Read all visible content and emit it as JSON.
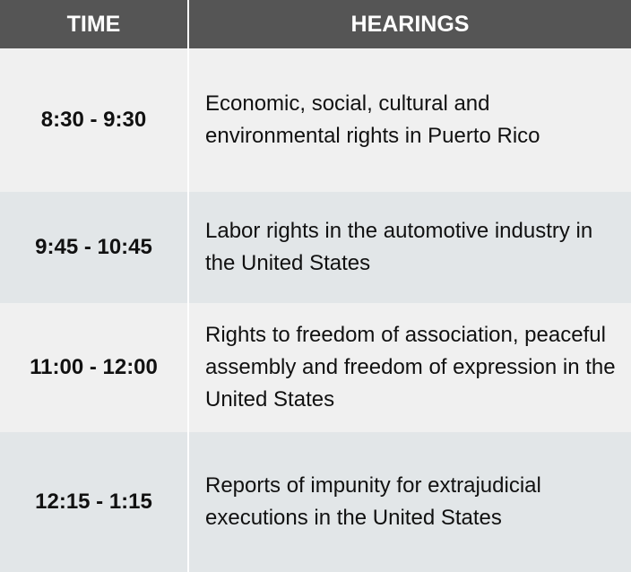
{
  "table": {
    "header": {
      "time": "TIME",
      "hearings": "HEARINGS"
    },
    "rows": [
      {
        "time": "8:30 - 9:30",
        "hearing": "Economic, social, cultural and environmental rights in Puerto Rico"
      },
      {
        "time": "9:45 - 10:45",
        "hearing": "Labor rights in the automotive industry in the United States"
      },
      {
        "time": "11:00 - 12:00",
        "hearing": "Rights to freedom of association, peaceful assembly and freedom of expression in the United States"
      },
      {
        "time": "12:15 - 1:15",
        "hearing": "Reports of impunity for extrajudicial executions in the United States"
      }
    ]
  },
  "colors": {
    "header_bg": "#555555",
    "header_text": "#ffffff",
    "row_light": "#f0f0f0",
    "row_dark": "#e2e6e8",
    "body_text": "#111111"
  }
}
